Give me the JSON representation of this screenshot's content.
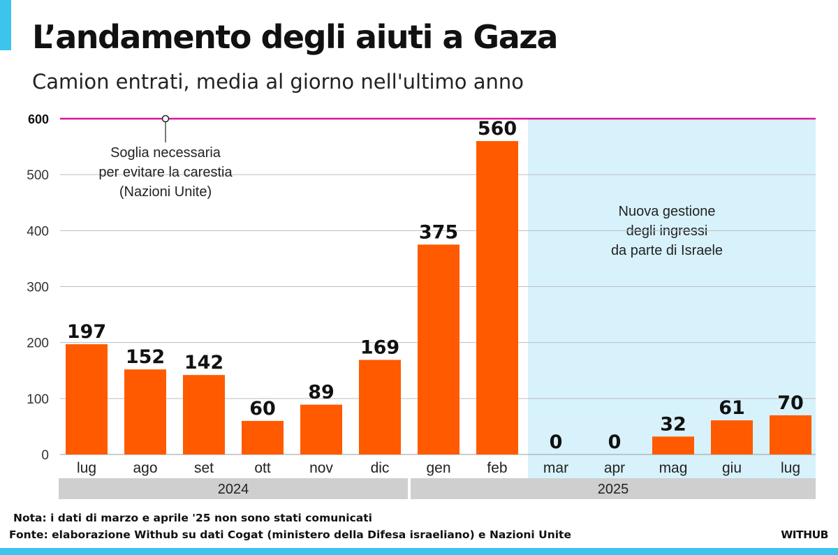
{
  "title": "L’andamento degli aiuti a Gaza",
  "subtitle": "Camion entrati, media al giorno nell'ultimo anno",
  "colors": {
    "bar": "#ff5a00",
    "threshold": "#d6179c",
    "highlight_bg": "#d7f2fb",
    "accent": "#3cc3ee",
    "grid": "#bdbdbd",
    "year_band": "#cfcfcf"
  },
  "chart_data": {
    "type": "bar",
    "categories": [
      "lug",
      "ago",
      "set",
      "ott",
      "nov",
      "dic",
      "gen",
      "feb",
      "mar",
      "apr",
      "mag",
      "giu",
      "lug"
    ],
    "values": [
      197,
      152,
      142,
      60,
      89,
      169,
      375,
      560,
      0,
      0,
      32,
      61,
      70
    ],
    "value_labels": [
      "197",
      "152",
      "142",
      "60",
      "89",
      "169",
      "375",
      "560",
      "0",
      "0",
      "32",
      "61",
      "70"
    ],
    "ylim": [
      0,
      600
    ],
    "yticks": [
      0,
      100,
      200,
      300,
      400,
      500,
      600
    ],
    "ytick_labels": [
      "0",
      "100",
      "200",
      "300",
      "400",
      "500",
      "600"
    ],
    "years": [
      {
        "label": "2024",
        "from": 0,
        "to": 5
      },
      {
        "label": "2025",
        "from": 6,
        "to": 12
      }
    ],
    "threshold": {
      "value": 600,
      "marker_at": 600,
      "label_lines": [
        "Soglia necessaria",
        "per evitare la carestia",
        "(Nazioni Unite)"
      ]
    },
    "highlight": {
      "from": 8,
      "to": 12,
      "label_lines": [
        "Nuova gestione",
        "degli ingressi",
        "da parte di Israele"
      ]
    }
  },
  "footer": {
    "note": "Nota: i dati di marzo e aprile '25 non sono stati comunicati",
    "source": "Fonte: elaborazione Withub su dati Cogat (ministero della Difesa israeliano) e Nazioni Unite",
    "brand": "WITHUB"
  }
}
